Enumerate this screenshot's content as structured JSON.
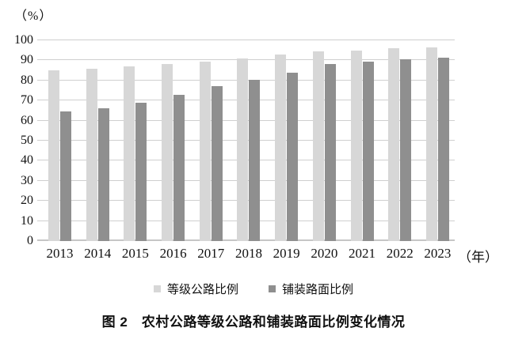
{
  "figure": {
    "y_unit_label": "（%）",
    "x_unit_label": "（年）"
  },
  "caption": "图 2　农村公路等级公路和铺装路面比例变化情况",
  "colors": {
    "series_light": "#d7d7d7",
    "series_dark": "#8f8f8f",
    "grid": "#cfcfcf",
    "baseline": "#c6c6c6",
    "text": "#111111"
  },
  "chart_data": {
    "type": "bar",
    "title": "图 2 农村公路等级公路和铺装路面比例变化情况",
    "categories": [
      "2013",
      "2014",
      "2015",
      "2016",
      "2017",
      "2018",
      "2019",
      "2020",
      "2021",
      "2022",
      "2023"
    ],
    "series": [
      {
        "name": "等级公路比例",
        "color": "#d7d7d7",
        "values": [
          85,
          86,
          87,
          88,
          89.5,
          91,
          93,
          94.5,
          95,
          96,
          96.5
        ]
      },
      {
        "name": "铺装路面比例",
        "color": "#8f8f8f",
        "values": [
          64.5,
          66,
          69,
          73,
          77,
          80.5,
          84,
          88,
          89.5,
          90.5,
          91.5
        ]
      }
    ],
    "ylim": [
      0,
      100
    ],
    "yticks": [
      0,
      10,
      20,
      30,
      40,
      50,
      60,
      70,
      80,
      90,
      100
    ],
    "y_unit": "%",
    "x_unit": "年",
    "xlabel": "年",
    "ylabel": "%",
    "grid": true,
    "legend_position": "bottom"
  }
}
